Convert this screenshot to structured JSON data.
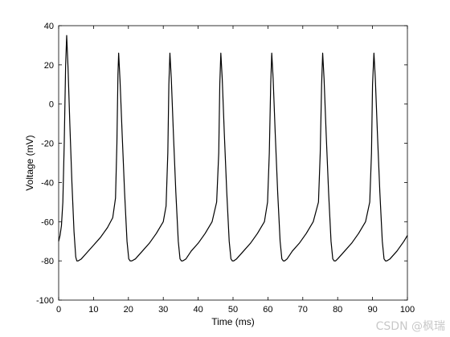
{
  "chart_data": {
    "type": "line",
    "title": "",
    "xlabel": "Time (ms)",
    "ylabel": "Voltage (mV)",
    "xlim": [
      0,
      100
    ],
    "ylim": [
      -100,
      40
    ],
    "xticks": [
      0,
      10,
      20,
      30,
      40,
      50,
      60,
      70,
      80,
      90,
      100
    ],
    "yticks": [
      40,
      20,
      0,
      -20,
      -40,
      -60,
      -80,
      -100
    ],
    "grid": false,
    "legend": "none",
    "line_color": "#000000",
    "series": [
      {
        "x": [
          0,
          0.4,
          0.8,
          1.2,
          1.6,
          2.0,
          2.3,
          2.7,
          3.2,
          3.8,
          4.4,
          4.9,
          5.2,
          5.6,
          6.5,
          8,
          10,
          12,
          14,
          15.5,
          16.3,
          16.7,
          17.0,
          17.2,
          17.6,
          18.2,
          18.9,
          19.6,
          20.1,
          20.5,
          21,
          22,
          24,
          26,
          28,
          30,
          30.8,
          31.3,
          31.6,
          31.9,
          32.3,
          32.9,
          33.6,
          34.3,
          34.8,
          35.2,
          35.6,
          36.5,
          38,
          40,
          42,
          44,
          45.3,
          45.9,
          46.2,
          46.5,
          46.9,
          47.5,
          48.2,
          48.9,
          49.4,
          49.8,
          50.2,
          51,
          53,
          55,
          57,
          59,
          59.9,
          60.4,
          60.8,
          61.1,
          61.5,
          62.1,
          62.8,
          63.5,
          64.0,
          64.4,
          64.8,
          65.5,
          67,
          69,
          71,
          73,
          74.5,
          75.0,
          75.4,
          75.7,
          76.1,
          76.7,
          77.4,
          78.1,
          78.6,
          79.0,
          79.4,
          80,
          82,
          84,
          86,
          88,
          89.2,
          89.7,
          90.0,
          90.4,
          90.8,
          91.4,
          92.1,
          92.8,
          93.3,
          93.7,
          94.1,
          95,
          97,
          99,
          100
        ],
        "y": [
          -70,
          -67,
          -62,
          -50,
          -20,
          20,
          35,
          18,
          -10,
          -40,
          -65,
          -78,
          -80,
          -80,
          -79,
          -76,
          -72,
          -68,
          -63,
          -58,
          -48,
          -20,
          15,
          26,
          12,
          -15,
          -45,
          -70,
          -79,
          -80,
          -80,
          -79,
          -75,
          -71,
          -66,
          -60,
          -52,
          -25,
          10,
          26,
          13,
          -15,
          -45,
          -70,
          -79,
          -80,
          -80,
          -79,
          -75,
          -71,
          -66,
          -60,
          -50,
          -25,
          10,
          26,
          13,
          -15,
          -45,
          -70,
          -79,
          -80,
          -80,
          -79,
          -75,
          -71,
          -66,
          -60,
          -50,
          -25,
          10,
          26,
          13,
          -15,
          -45,
          -70,
          -79,
          -80,
          -80,
          -79,
          -75,
          -71,
          -66,
          -60,
          -50,
          -25,
          10,
          26,
          13,
          -15,
          -45,
          -70,
          -79,
          -80,
          -80,
          -79,
          -75,
          -71,
          -66,
          -60,
          -50,
          -25,
          10,
          26,
          13,
          -15,
          -45,
          -70,
          -79,
          -80,
          -80,
          -79,
          -75,
          -70,
          -67
        ]
      }
    ]
  },
  "watermark": "CSDN @枫瑞"
}
